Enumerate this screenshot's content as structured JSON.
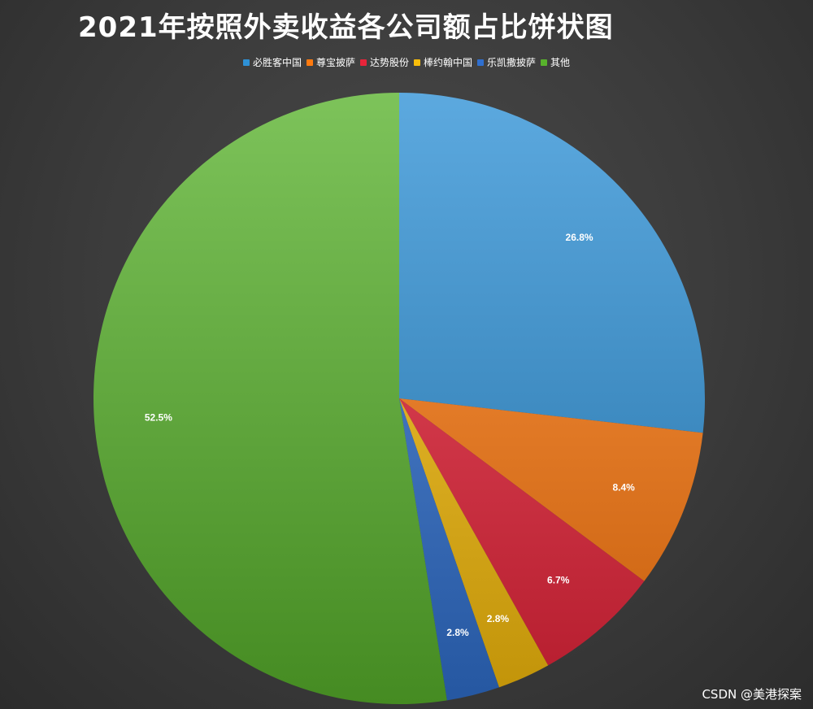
{
  "chart_data": {
    "type": "pie",
    "title": "2021年按照外卖收益各公司额占比饼状图",
    "slices": [
      {
        "name": "必胜客中国",
        "value": 26.8,
        "label": "26.8%",
        "color": "#2e91d6"
      },
      {
        "name": "尊宝披萨",
        "value": 8.4,
        "label": "8.4%",
        "color": "#ff7a0f"
      },
      {
        "name": "达势股份",
        "value": 6.7,
        "label": "6.7%",
        "color": "#e8243a"
      },
      {
        "name": "棒约翰中国",
        "value": 2.8,
        "label": "2.8%",
        "color": "#f8bd0a"
      },
      {
        "name": "乐凯撒披萨",
        "value": 2.8,
        "label": "2.8%",
        "color": "#2f6fcf"
      },
      {
        "name": "其他",
        "value": 52.5,
        "label": "52.5%",
        "color": "#58b22c"
      }
    ],
    "legend_position": "top"
  },
  "watermark": "CSDN @美港探案"
}
